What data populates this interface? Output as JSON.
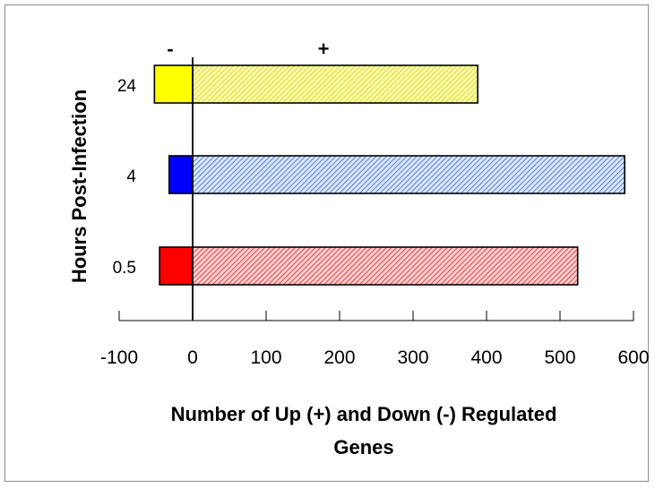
{
  "chart_data": {
    "type": "bar",
    "orientation": "horizontal",
    "categories": [
      "24",
      "4",
      "0.5"
    ],
    "series": [
      {
        "sign": "-",
        "values": [
          -52,
          -32,
          -45
        ],
        "colors": [
          "#ffff00",
          "#0000ff",
          "#ff0000"
        ],
        "pattern": "solid"
      },
      {
        "sign": "+",
        "values": [
          388,
          588,
          524
        ],
        "colors": [
          "#ffff00",
          "#0000ff",
          "#ff0000"
        ],
        "pattern": "hatched"
      }
    ],
    "sign_labels": {
      "negative": "-",
      "positive": "+"
    },
    "xlabel_line1": "Number of Up (+) and Down (-) Regulated",
    "xlabel_line2": "Genes",
    "ylabel": "Hours Post-Infection",
    "xlim": [
      -100,
      600
    ],
    "xticks": [
      -100,
      0,
      100,
      200,
      300,
      400,
      500,
      600
    ],
    "grid": false
  }
}
